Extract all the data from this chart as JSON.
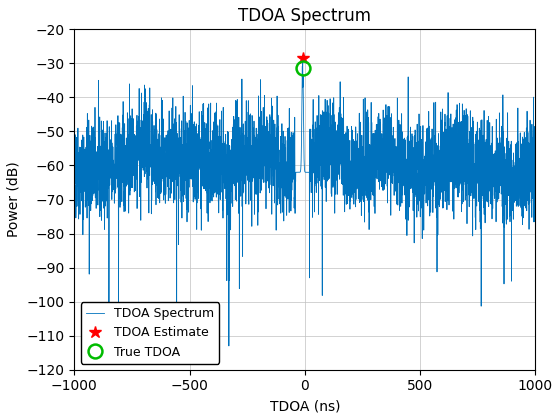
{
  "title": "TDOA Spectrum",
  "xlabel": "TDOA (ns)",
  "ylabel": "Power (dB)",
  "xlim": [
    -1000,
    1000
  ],
  "ylim": [
    -120,
    -20
  ],
  "yticks": [
    -120,
    -110,
    -100,
    -90,
    -80,
    -70,
    -60,
    -50,
    -40,
    -30,
    -20
  ],
  "xticks": [
    -1000,
    -500,
    0,
    500,
    1000
  ],
  "line_color": "#0072BD",
  "estimate_color": "red",
  "true_color": "#00BB00",
  "estimate_x": -10,
  "estimate_y": -28.5,
  "true_x": -10,
  "true_y": -31.5,
  "peak_x": -10,
  "peak_y": -28.0,
  "noise_mean": -62,
  "noise_std": 7,
  "num_points": 4000,
  "seed": 42,
  "legend_labels": [
    "TDOA Spectrum",
    "TDOA Estimate",
    "True TDOA"
  ],
  "title_fontsize": 12,
  "label_fontsize": 10,
  "legend_fontsize": 9
}
